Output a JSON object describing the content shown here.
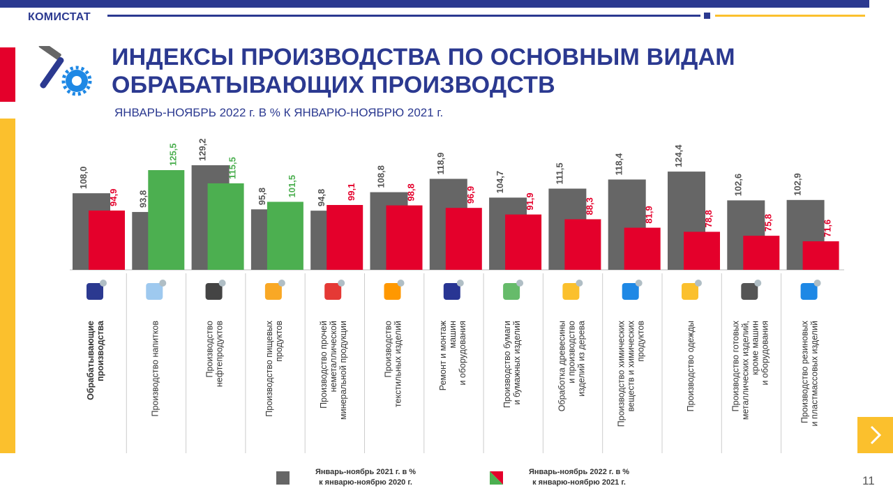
{
  "brand": "КОМИСТАТ",
  "title_line1": "ИНДЕКСЫ ПРОИЗВОДСТВА ПО ОСНОВНЫМ ВИДАМ",
  "title_line2": "ОБРАБАТЫВАЮЩИХ  ПРОИЗВОДСТВ",
  "subtitle": "ЯНВАРЬ-НОЯБРЬ  2022 г. В % К ЯНВАРЮ-НОЯБРЮ  2021 г.",
  "page_number": "11",
  "colors": {
    "series1": "#666666",
    "series2_down": "#e4002b",
    "series2_up": "#4caf50",
    "brand": "#2b3990",
    "accent": "#fbc02d"
  },
  "legend": {
    "series1_line1": "Январь-ноябрь 2021 г. в %",
    "series1_line2": "к январю-ноябрю 2020 г.",
    "series2_line1": "Январь-ноябрь 2022 г. в %",
    "series2_line2": "к январю-ноябрю 2021 г."
  },
  "chart_data": {
    "type": "bar",
    "title": "ИНДЕКСЫ ПРОИЗВОДСТВА ПО ОСНОВНЫМ ВИДАМ ОБРАБАТЫВАЮЩИХ ПРОИЗВОДСТВ",
    "subtitle": "ЯНВАРЬ-НОЯБРЬ 2022 г. В % К ЯНВАРЮ-НОЯБРЮ 2021 г.",
    "categories": [
      [
        "Обрабатывающие",
        "производства"
      ],
      [
        "Производство напитков"
      ],
      [
        "Производство",
        "нефтепродуктов"
      ],
      [
        "Производство пищевых",
        "продуктов"
      ],
      [
        "Производство прочей",
        "неметаллической",
        "минеральной продукции"
      ],
      [
        "Производство",
        "текстильных изделий"
      ],
      [
        "Ремонт и монтаж",
        "машин",
        "и оборудования"
      ],
      [
        "Производство бумаги",
        "и бумажных изделий"
      ],
      [
        "Обработка древесины",
        "и производство",
        "изделий  из дерева"
      ],
      [
        "Производство химических",
        "веществ и химических",
        "продуктов"
      ],
      [
        "Производство одежды"
      ],
      [
        "Производство готовых",
        "металлических  изделий,",
        "кроме машин",
        "и оборудования"
      ],
      [
        "Производство резиновых",
        "и пластмассовых изделий"
      ]
    ],
    "icons": [
      "hammer-gear-icon",
      "water-bottle-icon",
      "oil-pump-icon",
      "ice-cream-icon",
      "glass-icon",
      "textile-icon",
      "robot-arm-icon",
      "paper-icon",
      "wood-planks-icon",
      "test-tube-icon",
      "clothes-icon",
      "metal-gears-icon",
      "rubber-boot-icon"
    ],
    "series": [
      {
        "name": "Январь-ноябрь 2021 г. в % к январю-ноябрю 2020 г.",
        "values": [
          108.0,
          93.8,
          129.2,
          95.8,
          94.8,
          108.8,
          118.9,
          104.7,
          111.5,
          118.4,
          124.4,
          102.6,
          102.9
        ],
        "labels": [
          "108,0",
          "93,8",
          "129,2",
          "95,8",
          "94,8",
          "108,8",
          "118,9",
          "104,7",
          "111,5",
          "118,4",
          "124,4",
          "102,6",
          "102,9"
        ]
      },
      {
        "name": "Январь-ноябрь 2022 г. в % к январю-ноябрю 2021 г.",
        "values": [
          94.9,
          125.5,
          115.5,
          101.5,
          99.1,
          98.8,
          96.9,
          91.9,
          88.3,
          81.9,
          78.8,
          75.8,
          71.6
        ],
        "labels": [
          "94,9",
          "125,5",
          "115,5",
          "101,5",
          "99,1",
          "98,8",
          "96,9",
          "91,9",
          "88,3",
          "81,9",
          "78,8",
          "75,8",
          "71,6"
        ]
      }
    ],
    "baseline_note": "values above 100 for 2022 shown in green, below 100 in red",
    "ylim": [
      50,
      135
    ],
    "grid": false,
    "legend_position": "bottom"
  }
}
